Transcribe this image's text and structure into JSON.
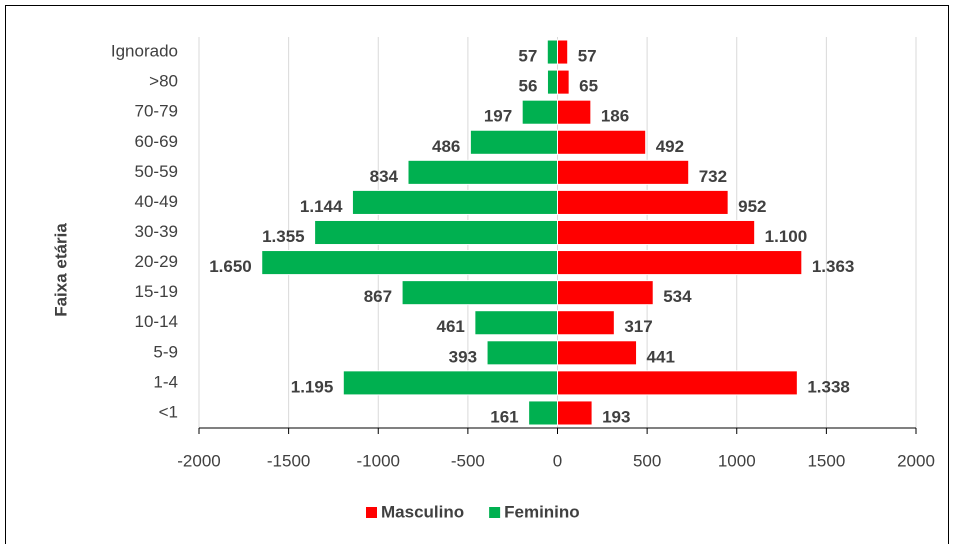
{
  "chart_data": {
    "type": "bar",
    "orientation": "horizontal",
    "y_label": "Faixa etária",
    "categories": [
      "Ignorado",
      ">80",
      "70-79",
      "60-69",
      "50-59",
      "40-49",
      "30-39",
      "20-29",
      "15-19",
      "10-14",
      "5-9",
      "1-4",
      "<1"
    ],
    "series": [
      {
        "name": "Masculino",
        "color": "#ff0000",
        "values": [
          57,
          65,
          186,
          492,
          732,
          952,
          1100,
          1363,
          534,
          317,
          441,
          1338,
          193
        ],
        "value_labels": [
          "57",
          "65",
          "186",
          "492",
          "732",
          "952",
          "1.100",
          "1.363",
          "534",
          "317",
          "441",
          "1.338",
          "193"
        ]
      },
      {
        "name": "Feminino",
        "color": "#00b050",
        "values": [
          -57,
          -56,
          -197,
          -486,
          -834,
          -1144,
          -1355,
          -1650,
          -867,
          -461,
          -393,
          -1195,
          -161
        ],
        "value_labels": [
          "57",
          "56",
          "197",
          "486",
          "834",
          "1.144",
          "1.355",
          "1.650",
          "867",
          "461",
          "393",
          "1.195",
          "161"
        ]
      }
    ],
    "xlim": [
      -2000,
      2000
    ],
    "xticks": [
      -2000,
      -1500,
      -1000,
      -500,
      0,
      500,
      1000,
      1500,
      2000
    ],
    "grid": true,
    "legend": "bottom"
  }
}
